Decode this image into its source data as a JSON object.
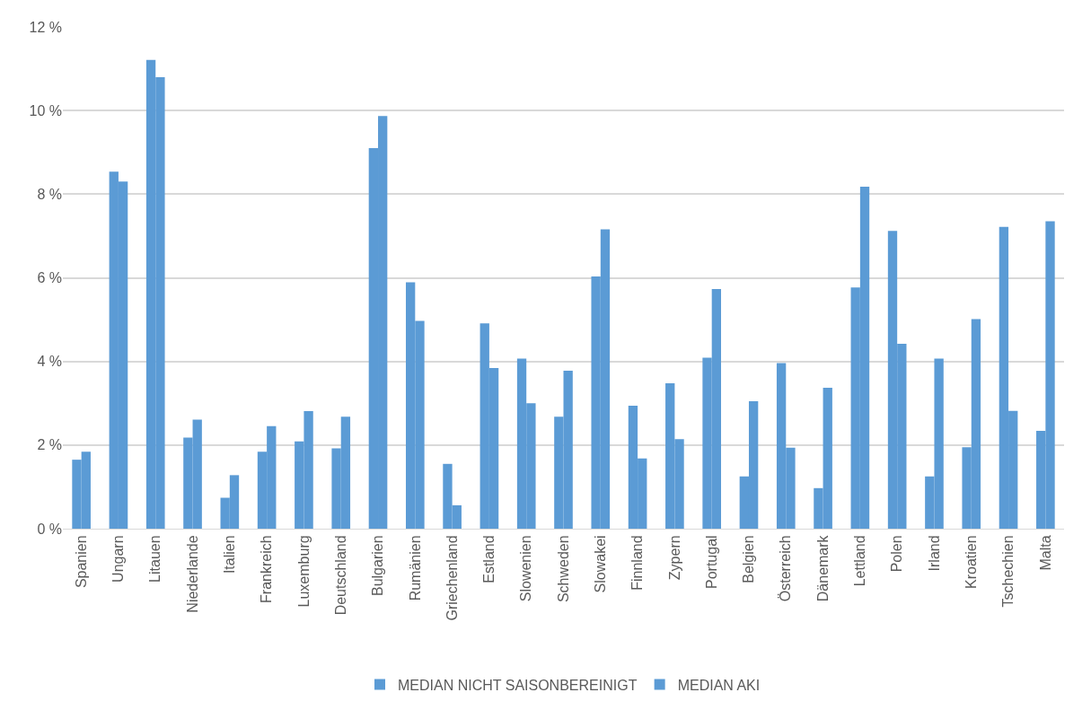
{
  "chart_data": {
    "type": "bar",
    "categories": [
      "Spanien",
      "Ungarn",
      "Litauen",
      "Niederlande",
      "Italien",
      "Frankreich",
      "Luxemburg",
      "Deutschland",
      "Bulgarien",
      "Rumänien",
      "Griechenland",
      "Estland",
      "Slowenien",
      "Schweden",
      "Slowakei",
      "Finnland",
      "Zypern",
      "Portugal",
      "Belgien",
      "Österreich",
      "Dänemark",
      "Lettland",
      "Polen",
      "Irland",
      "Kroatien",
      "Tschechien",
      "Malta"
    ],
    "series": [
      {
        "name": "MEDIAN NICHT SAISONBEREINIGT",
        "color": "#5b9bd5",
        "values": [
          1.65,
          8.54,
          11.21,
          2.18,
          0.74,
          1.84,
          2.09,
          1.92,
          9.1,
          5.89,
          1.55,
          4.91,
          4.07,
          2.68,
          6.03,
          2.94,
          3.48,
          4.09,
          1.25,
          3.96,
          0.97,
          5.77,
          7.12,
          1.25,
          1.95,
          7.22,
          2.34
        ]
      },
      {
        "name": "MEDIAN AKI",
        "color": "#5b9bd5",
        "values": [
          1.84,
          8.3,
          10.8,
          2.61,
          1.28,
          2.45,
          2.81,
          2.68,
          9.87,
          4.97,
          0.56,
          3.84,
          3.0,
          3.78,
          7.16,
          1.68,
          2.14,
          5.73,
          3.05,
          1.94,
          3.37,
          8.18,
          4.42,
          4.07,
          5.01,
          2.82,
          7.35
        ]
      }
    ],
    "ylim": [
      0,
      12
    ],
    "yticks": [
      {
        "value": 0,
        "label": "0 %"
      },
      {
        "value": 2,
        "label": "2 %"
      },
      {
        "value": 4,
        "label": "4 %"
      },
      {
        "value": 6,
        "label": "6 %"
      },
      {
        "value": 8,
        "label": "8 %"
      },
      {
        "value": 10,
        "label": "10 %"
      },
      {
        "value": 12,
        "label": "12 %"
      }
    ],
    "grid": "y",
    "legend": "bottom"
  }
}
